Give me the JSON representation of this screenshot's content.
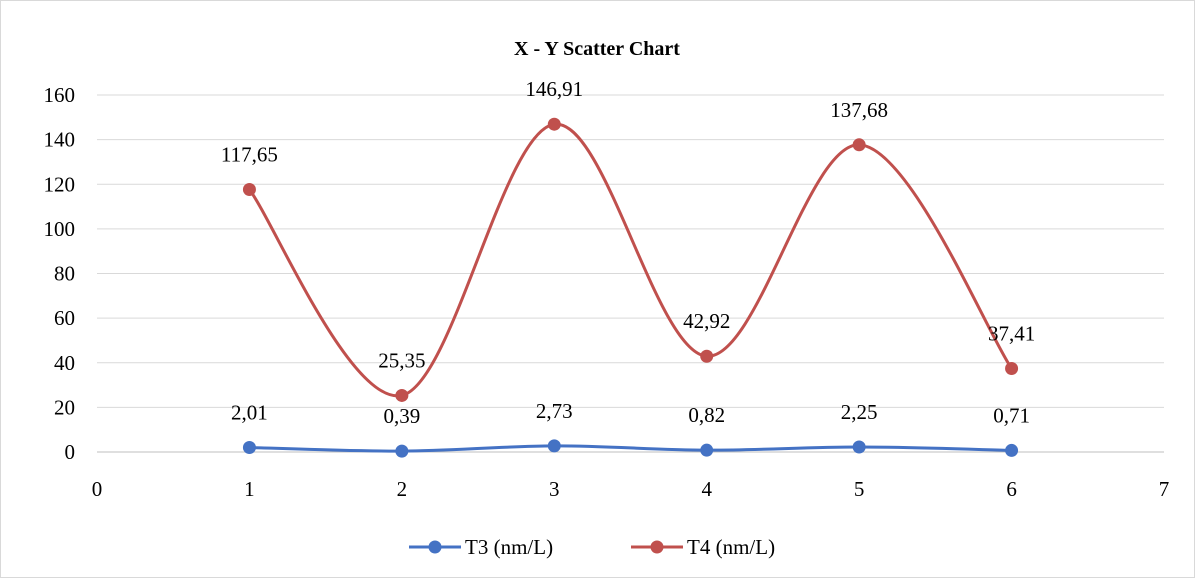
{
  "chart_data": {
    "type": "scatter",
    "title": "X - Y Scatter Chart",
    "xlim": [
      0,
      7
    ],
    "ylim": [
      0,
      160
    ],
    "x_ticks": [
      "0",
      "1",
      "2",
      "3",
      "4",
      "5",
      "6",
      "7"
    ],
    "y_ticks": [
      "0",
      "20",
      "40",
      "60",
      "80",
      "100",
      "120",
      "140",
      "160"
    ],
    "grid": "horizontal",
    "legend_position": "bottom",
    "series": [
      {
        "name": "T3 (nm/L)",
        "color": "#4472C4",
        "x": [
          1,
          2,
          3,
          4,
          5,
          6
        ],
        "y": [
          2.01,
          0.39,
          2.73,
          0.82,
          2.25,
          0.71
        ],
        "labels": [
          "2,01",
          "0,39",
          "2,73",
          "0,82",
          "2,25",
          "0,71"
        ]
      },
      {
        "name": "T4 (nm/L)",
        "color": "#C0504D",
        "x": [
          1,
          2,
          3,
          4,
          5,
          6
        ],
        "y": [
          117.65,
          25.35,
          146.91,
          42.92,
          137.68,
          37.41
        ],
        "labels": [
          "117,65",
          "25,35",
          "146,91",
          "42,92",
          "137,68",
          "37,41"
        ]
      }
    ]
  }
}
